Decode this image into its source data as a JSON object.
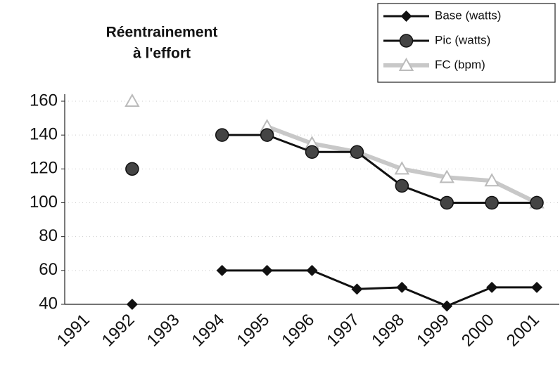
{
  "chart_data": {
    "type": "line",
    "title": [
      "Réentrainement",
      "à l'effort"
    ],
    "categories": [
      "1991",
      "1992",
      "1993",
      "1994",
      "1995",
      "1996",
      "1997",
      "1998",
      "1999",
      "2000",
      "2001"
    ],
    "series": [
      {
        "name": "Base (watts)",
        "color": "#111111",
        "marker": "diamond",
        "values": [
          null,
          40,
          null,
          60,
          60,
          60,
          49,
          50,
          39,
          50,
          50
        ]
      },
      {
        "name": "Pic (watts)",
        "color": "#111111",
        "marker": "circle",
        "values": [
          null,
          120,
          null,
          140,
          140,
          130,
          130,
          110,
          100,
          100,
          100
        ]
      },
      {
        "name": "FC (bpm)",
        "color": "#c8c8c8",
        "marker": "triangle",
        "values": [
          null,
          160,
          null,
          null,
          145,
          135,
          130,
          120,
          115,
          113,
          100
        ]
      }
    ],
    "ylim": [
      40,
      160
    ],
    "yticks": [
      40,
      60,
      80,
      100,
      120,
      140,
      160
    ],
    "grid": true,
    "legend": "top-right"
  }
}
